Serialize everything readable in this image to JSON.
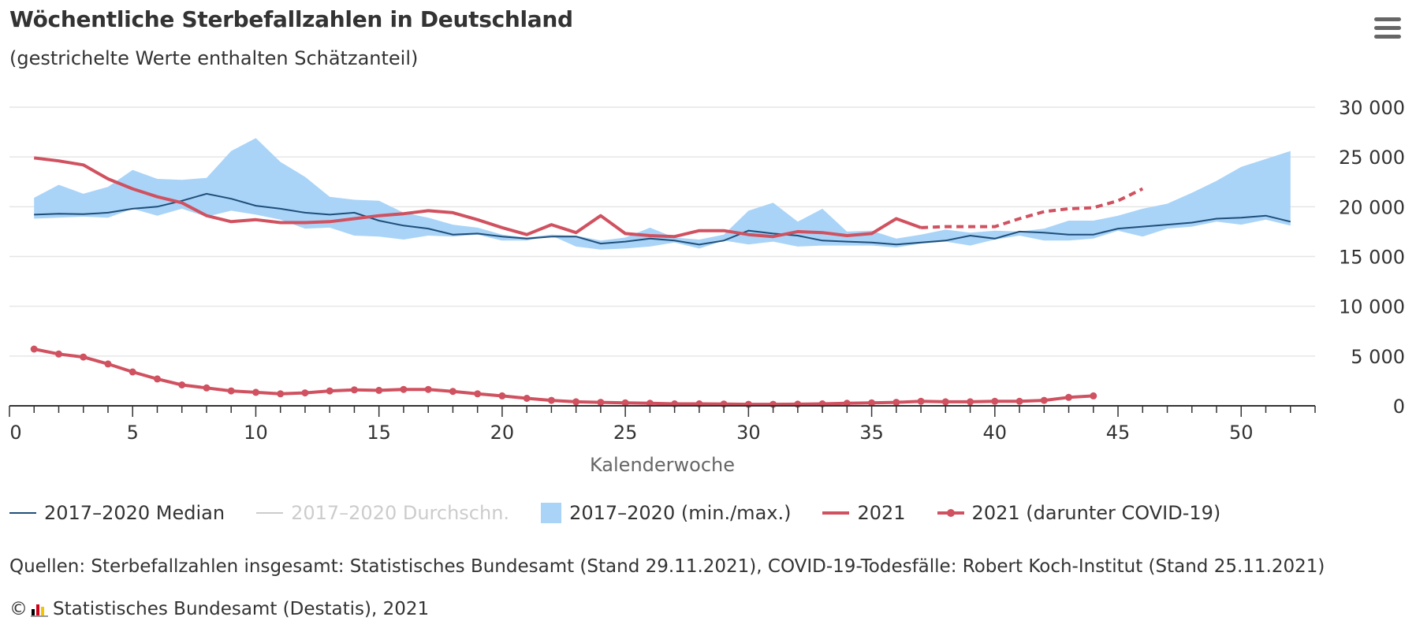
{
  "header": {
    "title": "Wöchentliche Sterbefallzahlen in Deutschland",
    "subtitle": "(gestrichelte Werte enthalten Schätzanteil)",
    "menu_icon": "hamburger-menu-icon"
  },
  "legend": {
    "median": "2017–2020 Median",
    "avg": "2017–2020 Durchschn.",
    "range": "2017–2020 (min./max.)",
    "y2021": "2021",
    "covid": "2021 (darunter COVID-19)"
  },
  "footer": {
    "source": "Quellen: Sterbefallzahlen insgesamt: Statistisches Bundesamt (Stand 29.11.2021), COVID-19-Todesfälle: Robert Koch-Institut (Stand 25.11.2021)",
    "copyright_symbol": "©",
    "copyright_text": "Statistisches Bundesamt (Destatis), 2021",
    "logo_icon": "destatis-logo-icon"
  },
  "chart_data": {
    "type": "line",
    "xlabel": "Kalenderwoche",
    "ylabel": "",
    "xlim": [
      0,
      53
    ],
    "ylim": [
      0,
      30000
    ],
    "x_ticks": [
      0,
      5,
      10,
      15,
      20,
      25,
      30,
      35,
      40,
      45,
      50
    ],
    "y_ticks": [
      0,
      5000,
      10000,
      15000,
      20000,
      25000,
      30000
    ],
    "y_tick_labels": [
      "0",
      "5 000",
      "10 000",
      "15 000",
      "20 000",
      "25 000",
      "30 000"
    ],
    "grid": "horizontal",
    "legend_position": "bottom",
    "colors": {
      "median": "#1f4e79",
      "range": "#a9d4f8",
      "y2021": "#d0515f",
      "covid": "#d0515f",
      "axis": "#333333",
      "grid": "#e6e6e6"
    },
    "weeks": [
      1,
      2,
      3,
      4,
      5,
      6,
      7,
      8,
      9,
      10,
      11,
      12,
      13,
      14,
      15,
      16,
      17,
      18,
      19,
      20,
      21,
      22,
      23,
      24,
      25,
      26,
      27,
      28,
      29,
      30,
      31,
      32,
      33,
      34,
      35,
      36,
      37,
      38,
      39,
      40,
      41,
      42,
      43,
      44,
      45,
      46,
      47,
      48,
      49,
      50,
      51,
      52
    ],
    "series": [
      {
        "name": "2017–2020 Median",
        "values": [
          19200,
          19300,
          19250,
          19400,
          19800,
          20000,
          20600,
          21300,
          20800,
          20100,
          19800,
          19400,
          19200,
          19400,
          18600,
          18100,
          17800,
          17200,
          17300,
          17000,
          16800,
          17000,
          17000,
          16300,
          16500,
          16800,
          16600,
          16200,
          16600,
          17600,
          17300,
          17100,
          16600,
          16500,
          16400,
          16200,
          16400,
          16600,
          17100,
          16800,
          17500,
          17400,
          17200,
          17200,
          17800,
          18000,
          18200,
          18400,
          18800,
          18900,
          19100,
          18500
        ]
      },
      {
        "name": "2017–2020 (min./max.)",
        "min": [
          18800,
          18900,
          19000,
          18900,
          19800,
          19100,
          19800,
          19000,
          19600,
          19200,
          18700,
          17800,
          17900,
          17100,
          17000,
          16700,
          17100,
          17000,
          17200,
          16600,
          16600,
          17100,
          16000,
          15700,
          15800,
          16000,
          16400,
          15800,
          16600,
          16200,
          16500,
          16000,
          16100,
          16100,
          16100,
          15900,
          16300,
          16500,
          16100,
          16700,
          17100,
          16600,
          16600,
          16800,
          17600,
          17000,
          17800,
          18000,
          18500,
          18200,
          18700,
          18100
        ],
        "max": [
          20900,
          22200,
          21300,
          22000,
          23700,
          22800,
          22700,
          22900,
          25600,
          26900,
          24500,
          23000,
          21000,
          20700,
          20600,
          19400,
          18900,
          18200,
          17900,
          17200,
          16900,
          17200,
          17100,
          16600,
          16900,
          17900,
          16900,
          16700,
          17200,
          19600,
          20400,
          18500,
          19800,
          17500,
          17600,
          16800,
          17200,
          17700,
          17400,
          17600,
          17500,
          17800,
          18600,
          18600,
          19100,
          19800,
          20300,
          21400,
          22600,
          24000,
          24800,
          25600
        ]
      },
      {
        "name": "2021",
        "values": [
          24900,
          24600,
          24200,
          22800,
          21800,
          21000,
          20400,
          19100,
          18500,
          18700,
          18400,
          18400,
          18500,
          18800,
          19100,
          19300,
          19600,
          19400,
          18700,
          17900,
          17200,
          18200,
          17400,
          19100,
          17300,
          17100,
          17000,
          17600,
          17600,
          17200,
          17000,
          17500,
          17400,
          17100,
          17300,
          18800,
          17900,
          null,
          null,
          null,
          null,
          null,
          null,
          null,
          null,
          null
        ]
      },
      {
        "name": "2021 (Schätzanteil)",
        "values": [
          null,
          null,
          null,
          null,
          null,
          null,
          null,
          null,
          null,
          null,
          null,
          null,
          null,
          null,
          null,
          null,
          null,
          null,
          null,
          null,
          null,
          null,
          null,
          null,
          null,
          null,
          null,
          null,
          null,
          null,
          null,
          null,
          null,
          null,
          null,
          null,
          17900,
          18000,
          18000,
          18000,
          18800,
          19500,
          19800,
          19900,
          20600,
          21800
        ]
      },
      {
        "name": "2021 (darunter COVID-19)",
        "values": [
          5700,
          5200,
          4900,
          4200,
          3400,
          2700,
          2100,
          1800,
          1500,
          1350,
          1200,
          1300,
          1500,
          1600,
          1550,
          1650,
          1650,
          1450,
          1200,
          1000,
          750,
          550,
          400,
          350,
          300,
          250,
          200,
          200,
          180,
          150,
          150,
          170,
          200,
          250,
          300,
          350,
          450,
          400,
          400,
          450,
          450,
          550,
          850,
          1000
        ]
      }
    ]
  }
}
